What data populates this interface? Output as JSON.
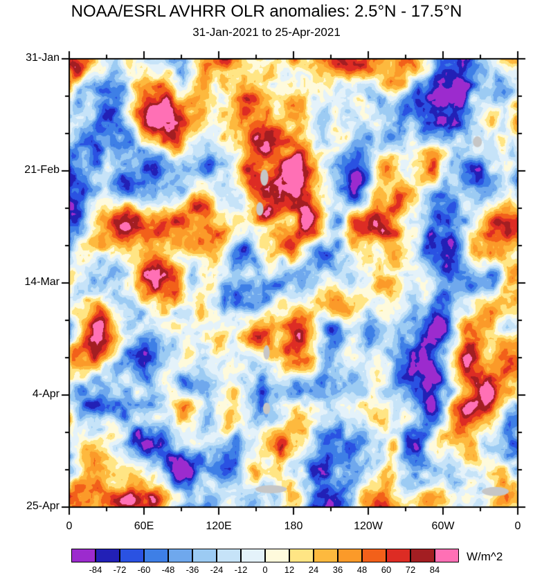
{
  "title": "NOAA/ESRL AVHRR OLR anomalies: 2.5°N - 17.5°N",
  "subtitle": "31-Jan-2021 to 25-Apr-2021",
  "chart_data": {
    "type": "heatmap",
    "variant": "hovmoller-time-longitude-filled-contour",
    "title": "NOAA/ESRL AVHRR OLR anomalies: 2.5°N - 17.5°N",
    "subtitle": "31-Jan-2021 to 25-Apr-2021",
    "x_axis": {
      "ticks": [
        "0",
        "60E",
        "120E",
        "180",
        "120W",
        "60W",
        "0"
      ],
      "range_degrees_east": [
        0,
        360
      ],
      "major_tick_step_degrees": 60,
      "minor_tick_step_degrees": 30
    },
    "y_axis": {
      "ticks": [
        "31-Jan",
        "21-Feb",
        "14-Mar",
        "4-Apr",
        "25-Apr"
      ],
      "start_date": "31-Jan-2021",
      "end_date": "25-Apr-2021",
      "major_tick_step_days": 21,
      "minor_tick_step_days": 7
    },
    "colorbar": {
      "unit": "W/m^2",
      "levels": [
        -84,
        -72,
        -60,
        -48,
        -36,
        -24,
        -12,
        0,
        12,
        24,
        36,
        48,
        60,
        72,
        84
      ],
      "colors": [
        "#9C2BCE",
        "#2220B6",
        "#2A52E2",
        "#3E7FE6",
        "#6FA8ED",
        "#9CCBF3",
        "#C6E3F8",
        "#E4F2FA",
        "#FEFADC",
        "#FFE584",
        "#FDB93E",
        "#FB9A29",
        "#F2601A",
        "#DD2C24",
        "#A31E22",
        "#FF70B5"
      ]
    },
    "missing_data_color": "#C6C6C6",
    "field_description": "Filled-contour OLR anomaly field (W/m^2): time increases downward (31-Jan-2021 to 25-Apr-2021), longitude across (0-360E). Negative anomalies (enhanced convection) in blues/purple, positive in yellows/oranges/reds; small gray patches mark missing data.",
    "anomaly_features": [
      {
        "x": 0.36,
        "y": 0.875,
        "r": 0.045,
        "amp": -75
      },
      {
        "x": 0.27,
        "y": 0.72,
        "r": 0.03,
        "amp": -55
      },
      {
        "x": 0.44,
        "y": 0.345,
        "r": 0.022,
        "amp": 60
      },
      {
        "x": 0.37,
        "y": 0.235,
        "r": 0.04,
        "amp": -45
      },
      {
        "x": 0.67,
        "y": 0.06,
        "r": 0.035,
        "amp": -45
      },
      {
        "x": 0.86,
        "y": 0.42,
        "r": 0.04,
        "amp": -40
      },
      {
        "x": 0.03,
        "y": 0.62,
        "r": 0.06,
        "amp": 35
      },
      {
        "x": 0.56,
        "y": 0.44,
        "r": 0.035,
        "amp": -40
      }
    ],
    "missing_patches": [
      {
        "x": 0.435,
        "y": 0.265,
        "rx": 0.009,
        "ry": 0.018
      },
      {
        "x": 0.425,
        "y": 0.335,
        "rx": 0.008,
        "ry": 0.015
      },
      {
        "x": 0.44,
        "y": 0.655,
        "rx": 0.007,
        "ry": 0.016
      },
      {
        "x": 0.44,
        "y": 0.78,
        "rx": 0.008,
        "ry": 0.013
      },
      {
        "x": 0.45,
        "y": 0.96,
        "rx": 0.035,
        "ry": 0.009
      },
      {
        "x": 0.95,
        "y": 0.965,
        "rx": 0.03,
        "ry": 0.01
      },
      {
        "x": 0.91,
        "y": 0.185,
        "rx": 0.01,
        "ry": 0.012
      }
    ]
  }
}
